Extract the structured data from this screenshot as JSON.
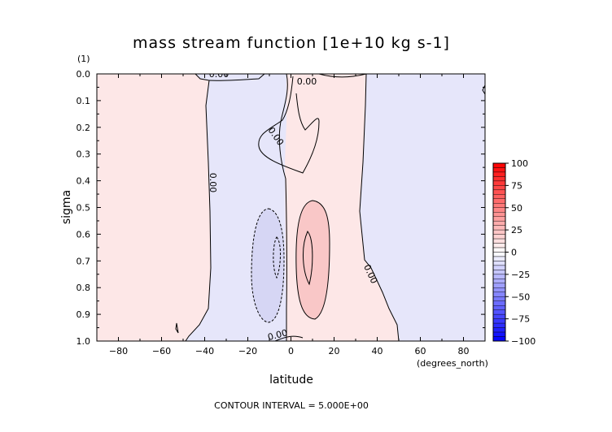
{
  "chart_data": {
    "type": "contour",
    "title": "mass stream function [1e+10 kg s-1]",
    "xlabel": "latitude",
    "x_unit": "(degrees_north)",
    "ylabel": "sigma",
    "y_unit": "(1)",
    "xlim": [
      -90,
      90
    ],
    "ylim": [
      0.0,
      1.0
    ],
    "y_inverted": true,
    "x_ticks": [
      -80,
      -60,
      -40,
      -20,
      0,
      20,
      40,
      60,
      80
    ],
    "x_tick_labels": [
      "−80",
      "−60",
      "−40",
      "−20",
      "0",
      "20",
      "40",
      "60",
      "80"
    ],
    "y_ticks": [
      0.0,
      0.1,
      0.2,
      0.3,
      0.4,
      0.5,
      0.6,
      0.7,
      0.8,
      0.9,
      1.0
    ],
    "y_tick_labels": [
      "0.0",
      "0.1",
      "0.2",
      "0.3",
      "0.4",
      "0.5",
      "0.6",
      "0.7",
      "0.8",
      "0.9",
      "1.0"
    ],
    "contour_labels": [
      "0.00",
      "0.00",
      "0.00",
      "0.00",
      "0.00",
      "0.00"
    ],
    "colorbar": {
      "levels": [
        100,
        75,
        50,
        25,
        0,
        -25,
        -50,
        -75,
        -100
      ],
      "labels": [
        "100",
        "75",
        "50",
        "25",
        "0",
        "−25",
        "−50",
        "−75",
        "−100"
      ],
      "max_color": "#ff0000",
      "mid_color": "#ffffff",
      "min_color": "#0000ff"
    },
    "footer": "CONTOUR INTERVAL = 5.000E+00",
    "regions": [
      {
        "name": "southern-positive-cell",
        "sign": "positive",
        "lat_range": [
          -90,
          -45
        ]
      },
      {
        "name": "southern-negative-cell",
        "sign": "negative",
        "lat_range": [
          -45,
          -2
        ],
        "min_value": -10
      },
      {
        "name": "equatorial-positive-cell",
        "sign": "positive",
        "lat_range": [
          -2,
          48
        ],
        "max_value": 10
      },
      {
        "name": "northern-negative-cell",
        "sign": "negative",
        "lat_range": [
          48,
          90
        ]
      }
    ],
    "colors": {
      "positive_fill": "#fde7e7",
      "negative_fill": "#e6e6fa",
      "positive_inner": "#f9c7c7",
      "negative_inner": "#d6d6f4"
    }
  }
}
